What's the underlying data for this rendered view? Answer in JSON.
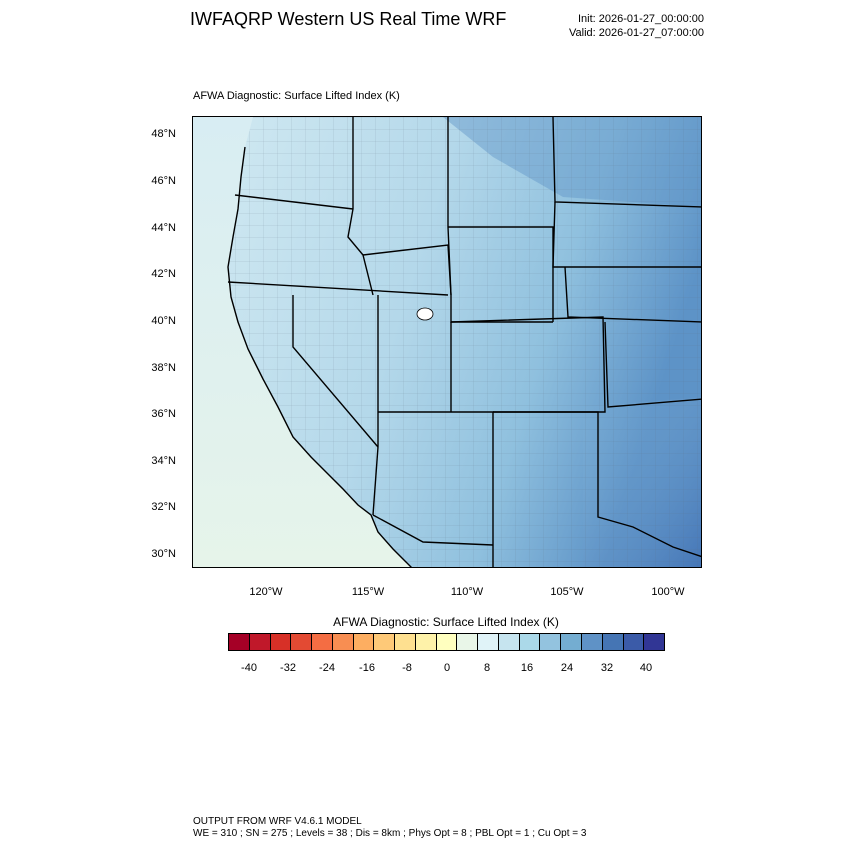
{
  "header": {
    "title": "IWFAQRP Western US Real Time WRF",
    "init": "Init: 2026-01-27_00:00:00",
    "valid": "Valid: 2026-01-27_07:00:00"
  },
  "plot_title": "AFWA Diagnostic: Surface Lifted Index   (K)",
  "map": {
    "lat_labels": [
      "48°N",
      "46°N",
      "44°N",
      "42°N",
      "40°N",
      "38°N",
      "36°N",
      "34°N",
      "32°N",
      "30°N"
    ],
    "lon_labels": [
      "120°W",
      "115°W",
      "110°W",
      "105°W",
      "100°W"
    ],
    "background_colors": {
      "ocean": "#dceef0",
      "land_light": "#cde7f0",
      "land_mid": "#a9d1e5",
      "land_dark": "#79b1d3",
      "land_deep": "#4a84bf"
    }
  },
  "colorbar": {
    "title": "AFWA Diagnostic: Surface Lifted Index  (K)",
    "labels": [
      "-40",
      "-32",
      "-24",
      "-16",
      "-8",
      "0",
      "8",
      "16",
      "24",
      "32",
      "40"
    ],
    "colors": [
      "#a50026",
      "#c0182a",
      "#d73027",
      "#e34a33",
      "#f46d43",
      "#f88e52",
      "#fdae61",
      "#fec978",
      "#fee090",
      "#fef2a9",
      "#ffffbf",
      "#e9f6e8",
      "#e0f3f8",
      "#c6e4ef",
      "#abd9e9",
      "#93c3df",
      "#74add1",
      "#5f92c6",
      "#4575b4",
      "#3b5ba8",
      "#313695"
    ]
  },
  "footer": {
    "line1": "OUTPUT FROM WRF V4.6.1 MODEL",
    "line2": "WE = 310 ; SN = 275 ; Levels = 38 ; Dis = 8km ; Phys Opt = 8 ; PBL Opt = 1 ; Cu Opt = 3"
  }
}
